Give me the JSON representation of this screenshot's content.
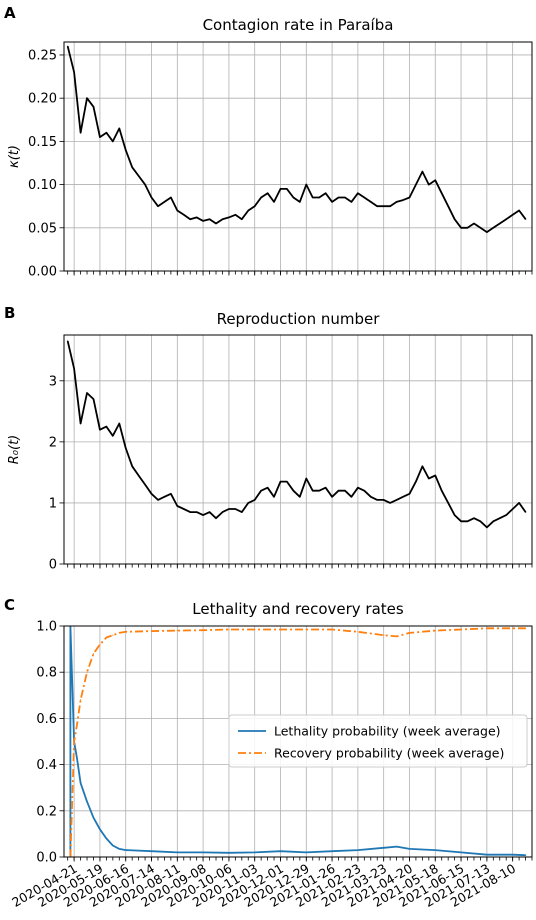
{
  "chart_data": [
    {
      "panel_letter": "A",
      "type": "line",
      "title": "Contagion rate in Paraíba",
      "ylabel": "κ(t)",
      "ylim": [
        0.0,
        0.265
      ],
      "yticks": [
        0.0,
        0.05,
        0.1,
        0.15,
        0.2,
        0.25
      ],
      "ytick_labels": [
        "0.00",
        "0.05",
        "0.10",
        "0.15",
        "0.20",
        "0.25"
      ],
      "grid": true,
      "series": [
        {
          "color": "#000000",
          "x": [
            "2020-04-14",
            "2020-04-21",
            "2020-04-28",
            "2020-05-05",
            "2020-05-12",
            "2020-05-19",
            "2020-05-26",
            "2020-06-02",
            "2020-06-09",
            "2020-06-16",
            "2020-06-23",
            "2020-06-30",
            "2020-07-07",
            "2020-07-14",
            "2020-07-21",
            "2020-07-28",
            "2020-08-04",
            "2020-08-11",
            "2020-08-18",
            "2020-08-25",
            "2020-09-01",
            "2020-09-08",
            "2020-09-15",
            "2020-09-22",
            "2020-09-29",
            "2020-10-06",
            "2020-10-13",
            "2020-10-20",
            "2020-10-27",
            "2020-11-03",
            "2020-11-10",
            "2020-11-17",
            "2020-11-24",
            "2020-12-01",
            "2020-12-08",
            "2020-12-15",
            "2020-12-22",
            "2020-12-29",
            "2021-01-05",
            "2021-01-12",
            "2021-01-19",
            "2021-01-26",
            "2021-02-02",
            "2021-02-09",
            "2021-02-16",
            "2021-02-23",
            "2021-03-02",
            "2021-03-09",
            "2021-03-16",
            "2021-03-23",
            "2021-03-30",
            "2021-04-06",
            "2021-04-13",
            "2021-04-20",
            "2021-04-27",
            "2021-05-04",
            "2021-05-11",
            "2021-05-18",
            "2021-05-25",
            "2021-06-01",
            "2021-06-08",
            "2021-06-15",
            "2021-06-22",
            "2021-06-29",
            "2021-07-06",
            "2021-07-13",
            "2021-07-20",
            "2021-07-27",
            "2021-08-03",
            "2021-08-10",
            "2021-08-17",
            "2021-08-24"
          ],
          "values": [
            0.26,
            0.23,
            0.16,
            0.2,
            0.19,
            0.155,
            0.16,
            0.15,
            0.165,
            0.14,
            0.12,
            0.11,
            0.1,
            0.085,
            0.075,
            0.08,
            0.085,
            0.07,
            0.065,
            0.06,
            0.062,
            0.058,
            0.06,
            0.055,
            0.06,
            0.062,
            0.065,
            0.06,
            0.07,
            0.075,
            0.085,
            0.09,
            0.08,
            0.095,
            0.095,
            0.085,
            0.08,
            0.1,
            0.085,
            0.085,
            0.09,
            0.08,
            0.085,
            0.085,
            0.08,
            0.09,
            0.085,
            0.08,
            0.075,
            0.075,
            0.075,
            0.08,
            0.082,
            0.085,
            0.1,
            0.115,
            0.1,
            0.105,
            0.09,
            0.075,
            0.06,
            0.05,
            0.05,
            0.055,
            0.05,
            0.045,
            0.05,
            0.055,
            0.06,
            0.065,
            0.07,
            0.06
          ]
        }
      ]
    },
    {
      "panel_letter": "B",
      "type": "line",
      "title": "Reproduction number",
      "ylabel": "R₀(t)",
      "ylim": [
        0.0,
        3.75
      ],
      "yticks": [
        0,
        1,
        2,
        3
      ],
      "ytick_labels": [
        "0",
        "1",
        "2",
        "3"
      ],
      "grid": true,
      "series": [
        {
          "color": "#000000",
          "x": [
            "2020-04-14",
            "2020-04-21",
            "2020-04-28",
            "2020-05-05",
            "2020-05-12",
            "2020-05-19",
            "2020-05-26",
            "2020-06-02",
            "2020-06-09",
            "2020-06-16",
            "2020-06-23",
            "2020-06-30",
            "2020-07-07",
            "2020-07-14",
            "2020-07-21",
            "2020-07-28",
            "2020-08-04",
            "2020-08-11",
            "2020-08-18",
            "2020-08-25",
            "2020-09-01",
            "2020-09-08",
            "2020-09-15",
            "2020-09-22",
            "2020-09-29",
            "2020-10-06",
            "2020-10-13",
            "2020-10-20",
            "2020-10-27",
            "2020-11-03",
            "2020-11-10",
            "2020-11-17",
            "2020-11-24",
            "2020-12-01",
            "2020-12-08",
            "2020-12-15",
            "2020-12-22",
            "2020-12-29",
            "2021-01-05",
            "2021-01-12",
            "2021-01-19",
            "2021-01-26",
            "2021-02-02",
            "2021-02-09",
            "2021-02-16",
            "2021-02-23",
            "2021-03-02",
            "2021-03-09",
            "2021-03-16",
            "2021-03-23",
            "2021-03-30",
            "2021-04-06",
            "2021-04-13",
            "2021-04-20",
            "2021-04-27",
            "2021-05-04",
            "2021-05-11",
            "2021-05-18",
            "2021-05-25",
            "2021-06-01",
            "2021-06-08",
            "2021-06-15",
            "2021-06-22",
            "2021-06-29",
            "2021-07-06",
            "2021-07-13",
            "2021-07-20",
            "2021-07-27",
            "2021-08-03",
            "2021-08-10",
            "2021-08-17",
            "2021-08-24"
          ],
          "values": [
            3.65,
            3.2,
            2.3,
            2.8,
            2.7,
            2.2,
            2.25,
            2.1,
            2.3,
            1.9,
            1.6,
            1.45,
            1.3,
            1.15,
            1.05,
            1.1,
            1.15,
            0.95,
            0.9,
            0.85,
            0.85,
            0.8,
            0.85,
            0.75,
            0.85,
            0.9,
            0.9,
            0.85,
            1.0,
            1.05,
            1.2,
            1.25,
            1.1,
            1.35,
            1.35,
            1.2,
            1.1,
            1.4,
            1.2,
            1.2,
            1.25,
            1.1,
            1.2,
            1.2,
            1.1,
            1.25,
            1.2,
            1.1,
            1.05,
            1.05,
            1.0,
            1.05,
            1.1,
            1.15,
            1.35,
            1.6,
            1.4,
            1.45,
            1.2,
            1.0,
            0.8,
            0.7,
            0.7,
            0.75,
            0.7,
            0.6,
            0.7,
            0.75,
            0.8,
            0.9,
            1.0,
            0.85
          ]
        }
      ]
    },
    {
      "panel_letter": "C",
      "type": "line",
      "title": "Lethality and recovery rates",
      "ylim": [
        0.0,
        1.0
      ],
      "yticks": [
        0.0,
        0.2,
        0.4,
        0.6,
        0.8,
        1.0
      ],
      "ytick_labels": [
        "0.0",
        "0.2",
        "0.4",
        "0.6",
        "0.8",
        "1.0"
      ],
      "grid": true,
      "legend_position": "center-right",
      "categories": [
        "2020-04-21",
        "2020-05-19",
        "2020-06-16",
        "2020-07-14",
        "2020-08-11",
        "2020-09-08",
        "2020-10-06",
        "2020-11-03",
        "2020-12-01",
        "2020-12-29",
        "2021-01-26",
        "2021-02-23",
        "2021-03-23",
        "2021-04-20",
        "2021-05-18",
        "2021-06-15",
        "2021-07-13",
        "2021-08-10"
      ],
      "series": [
        {
          "name": "Lethality probability (week average)",
          "color": "#1f77b4",
          "style": "solid",
          "x": [
            "2020-04-17",
            "2020-04-17",
            "2020-04-21",
            "2020-04-24",
            "2020-04-28",
            "2020-05-05",
            "2020-05-12",
            "2020-05-19",
            "2020-05-26",
            "2020-06-02",
            "2020-06-09",
            "2020-06-16",
            "2020-07-14",
            "2020-08-11",
            "2020-09-08",
            "2020-10-06",
            "2020-11-03",
            "2020-12-01",
            "2020-12-29",
            "2021-01-26",
            "2021-02-23",
            "2021-03-23",
            "2021-04-06",
            "2021-04-20",
            "2021-05-18",
            "2021-06-15",
            "2021-07-13",
            "2021-08-10",
            "2021-08-24"
          ],
          "values": [
            0.0,
            1.0,
            0.5,
            0.43,
            0.32,
            0.24,
            0.17,
            0.12,
            0.08,
            0.05,
            0.035,
            0.03,
            0.025,
            0.02,
            0.02,
            0.018,
            0.02,
            0.025,
            0.02,
            0.025,
            0.03,
            0.04,
            0.045,
            0.035,
            0.03,
            0.02,
            0.01,
            0.01,
            0.008
          ]
        },
        {
          "name": "Recovery probability (week average)",
          "color": "#ff7f0e",
          "style": "dashdot",
          "x": [
            "2020-04-17",
            "2020-04-21",
            "2020-04-24",
            "2020-04-28",
            "2020-05-05",
            "2020-05-12",
            "2020-05-19",
            "2020-05-26",
            "2020-06-02",
            "2020-06-09",
            "2020-06-16",
            "2020-07-14",
            "2020-08-11",
            "2020-09-08",
            "2020-10-06",
            "2020-11-03",
            "2020-12-01",
            "2020-12-29",
            "2021-01-26",
            "2021-02-23",
            "2021-03-23",
            "2021-04-06",
            "2021-04-20",
            "2021-05-18",
            "2021-06-15",
            "2021-07-13",
            "2021-08-10",
            "2021-08-24"
          ],
          "values": [
            0.0,
            0.5,
            0.57,
            0.68,
            0.8,
            0.88,
            0.92,
            0.95,
            0.96,
            0.97,
            0.975,
            0.978,
            0.98,
            0.982,
            0.985,
            0.985,
            0.985,
            0.985,
            0.985,
            0.975,
            0.96,
            0.955,
            0.97,
            0.98,
            0.985,
            0.99,
            0.99,
            0.99
          ]
        }
      ]
    }
  ]
}
